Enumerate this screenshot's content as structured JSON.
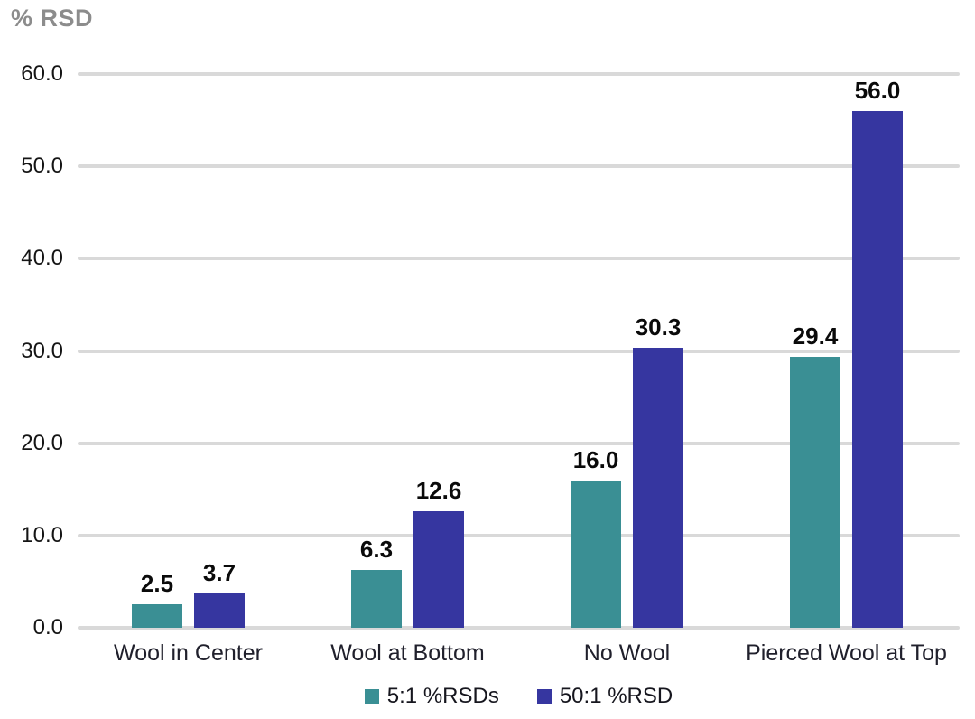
{
  "chart_title": "% RSD",
  "chart_data": {
    "type": "bar",
    "title": "% RSD",
    "categories": [
      "Wool in Center",
      "Wool at Bottom",
      "No Wool",
      "Pierced Wool at Top"
    ],
    "series": [
      {
        "name": "5:1 %RSDs",
        "color": "#3A8F94",
        "values": [
          2.5,
          6.3,
          16.0,
          29.4
        ]
      },
      {
        "name": "50:1 %RSD",
        "color": "#3636A0",
        "values": [
          3.7,
          12.6,
          30.3,
          56.0
        ]
      }
    ],
    "value_labels": [
      [
        "2.5",
        "6.3",
        "16.0",
        "29.4"
      ],
      [
        "3.7",
        "12.6",
        "30.3",
        "56.0"
      ]
    ],
    "xlabel": "",
    "ylabel": "% RSD",
    "ylim": [
      0,
      60
    ],
    "ytick_step": 10,
    "ytick_labels": [
      "0.0",
      "10.0",
      "20.0",
      "30.0",
      "40.0",
      "50.0",
      "60.0"
    ],
    "grid": true,
    "legend_position": "bottom"
  },
  "colors": {
    "gridline": "#D9D9D9",
    "title_text": "#8C8C8C",
    "tick_text": "#151515",
    "category_text": "#20202C",
    "value_label_text": "#0A0A0A",
    "background": "#FFFFFF"
  }
}
